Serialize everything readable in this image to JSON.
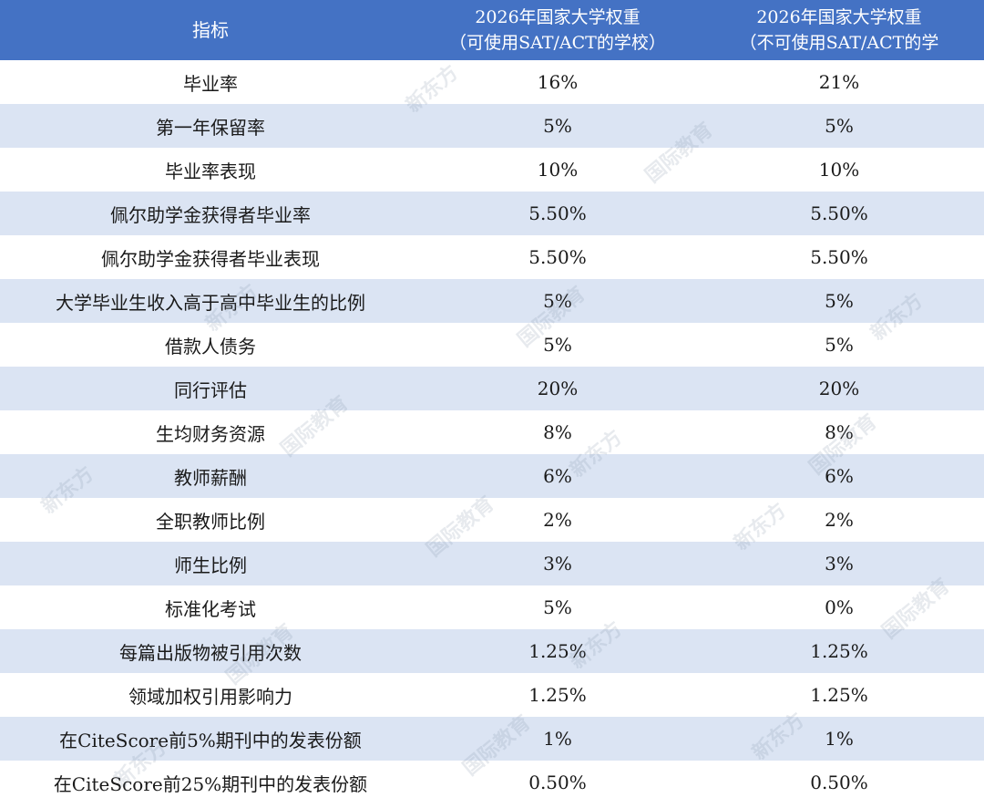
{
  "headers": {
    "indicator": "指标",
    "col_sat_line1": "2026年国家大学权重",
    "col_sat_line2": "（可使用SAT/ACT的学校）",
    "col_nosat_line1": "2026年国家大学权重",
    "col_nosat_line2": "（不可使用SAT/ACT的学"
  },
  "rows": [
    {
      "indicator": "毕业率",
      "sat": "16%",
      "nosat": "21%"
    },
    {
      "indicator": "第一年保留率",
      "sat": "5%",
      "nosat": "5%"
    },
    {
      "indicator": "毕业率表现",
      "sat": "10%",
      "nosat": "10%"
    },
    {
      "indicator": "佩尔助学金获得者毕业率",
      "sat": "5.50%",
      "nosat": "5.50%"
    },
    {
      "indicator": "佩尔助学金获得者毕业表现",
      "sat": "5.50%",
      "nosat": "5.50%"
    },
    {
      "indicator": "大学毕业生收入高于高中毕业生的比例",
      "sat": "5%",
      "nosat": "5%"
    },
    {
      "indicator": "借款人债务",
      "sat": "5%",
      "nosat": "5%"
    },
    {
      "indicator": "同行评估",
      "sat": "20%",
      "nosat": "20%"
    },
    {
      "indicator": "生均财务资源",
      "sat": "8%",
      "nosat": "8%"
    },
    {
      "indicator": "教师薪酬",
      "sat": "6%",
      "nosat": "6%"
    },
    {
      "indicator": "全职教师比例",
      "sat": "2%",
      "nosat": "2%"
    },
    {
      "indicator": "师生比例",
      "sat": "3%",
      "nosat": "3%"
    },
    {
      "indicator": "标准化考试",
      "sat": "5%",
      "nosat": "0%"
    },
    {
      "indicator": "每篇出版物被引用次数",
      "sat": "1.25%",
      "nosat": "1.25%"
    },
    {
      "indicator": "领域加权引用影响力",
      "sat": "1.25%",
      "nosat": "1.25%"
    },
    {
      "indicator": "在CiteScore前5%期刊中的发表份额",
      "sat": "1%",
      "nosat": "1%"
    },
    {
      "indicator": "在CiteScore前25%期刊中的发表份额",
      "sat": "0.50%",
      "nosat": "0.50%"
    }
  ],
  "watermark": {
    "brand": "新东方",
    "sub": "国际教育"
  },
  "colors": {
    "header_bg": "#4472c4",
    "alt_row_bg": "#dbe4f3",
    "text": "#1a1a1a"
  }
}
